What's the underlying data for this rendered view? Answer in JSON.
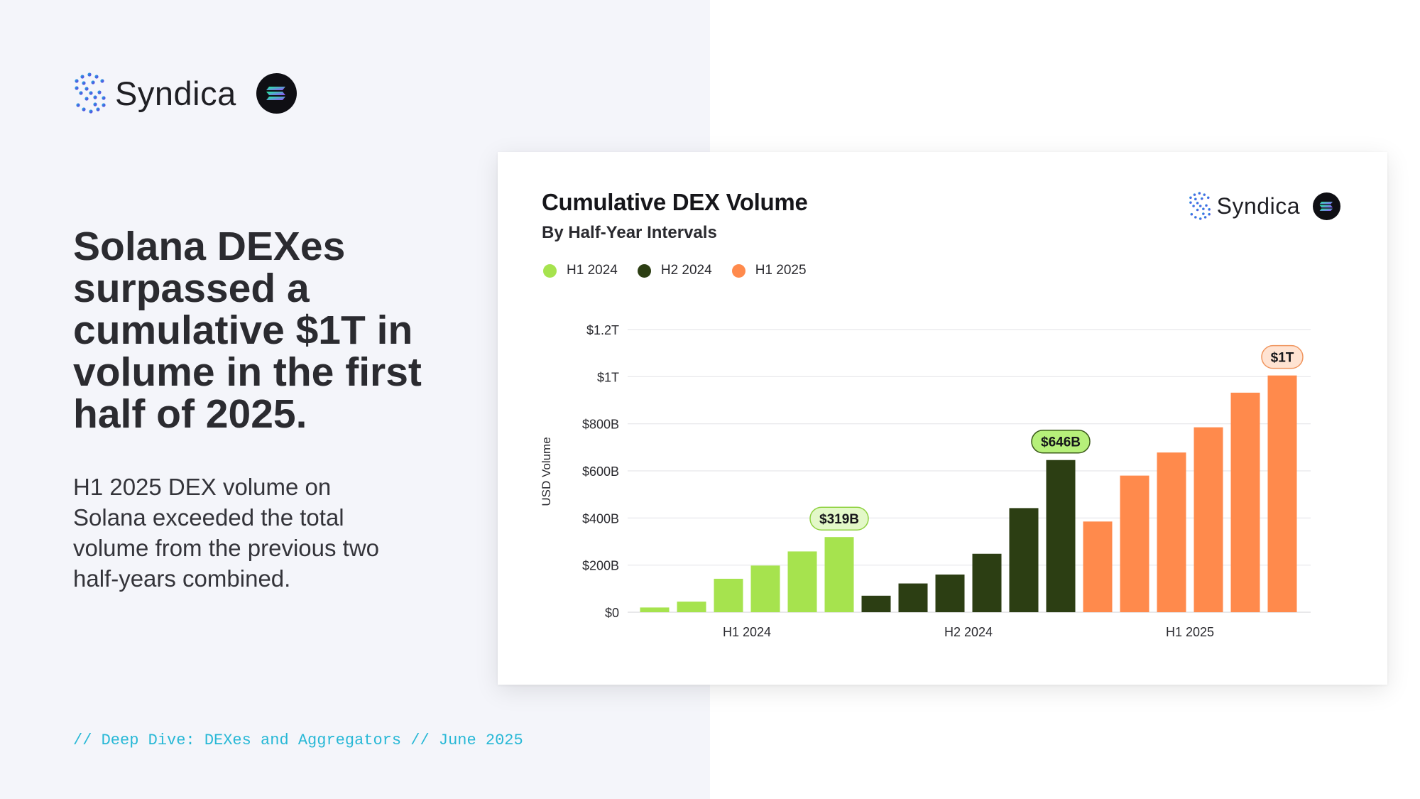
{
  "brand": {
    "name": "Syndica"
  },
  "left": {
    "headline": "Solana DEXes surpassed a cumulative $1T in volume in the first half of 2025.",
    "subtext": "H1 2025 DEX volume on Solana exceeded the total volume from the previous two half-years combined.",
    "footer": "// Deep Dive: DEXes and Aggregators // June 2025"
  },
  "colors": {
    "h1_2024": "#a6e34e",
    "h2_2024": "#2c3e13",
    "h1_2025": "#ff8a4c",
    "footer_accent": "#28b8d6"
  },
  "chart_data": {
    "type": "bar",
    "title": "Cumulative DEX Volume",
    "subtitle": "By Half-Year Intervals",
    "ylabel": "USD Volume",
    "xlabel": "",
    "ylim": [
      0,
      1200
    ],
    "y_ticks": [
      {
        "value": 0,
        "label": "$0"
      },
      {
        "value": 200,
        "label": "$200B"
      },
      {
        "value": 400,
        "label": "$400B"
      },
      {
        "value": 600,
        "label": "$600B"
      },
      {
        "value": 800,
        "label": "$800B"
      },
      {
        "value": 1000,
        "label": "$1T"
      },
      {
        "value": 1200,
        "label": "$1.2T"
      }
    ],
    "grid": true,
    "legend_position": "top-left",
    "series": [
      {
        "name": "H1 2024",
        "color": "#a6e34e",
        "values": [
          20,
          45,
          142,
          198,
          258,
          319
        ],
        "x_label": "H1 2024",
        "callout": "$319B"
      },
      {
        "name": "H2 2024",
        "color": "#2c3e13",
        "values": [
          70,
          122,
          160,
          248,
          442,
          646
        ],
        "x_label": "H2 2024",
        "callout": "$646B"
      },
      {
        "name": "H1 2025",
        "color": "#ff8a4c",
        "values": [
          385,
          580,
          678,
          785,
          932,
          1005
        ],
        "x_label": "H1 2025",
        "callout": "$1T"
      }
    ]
  }
}
